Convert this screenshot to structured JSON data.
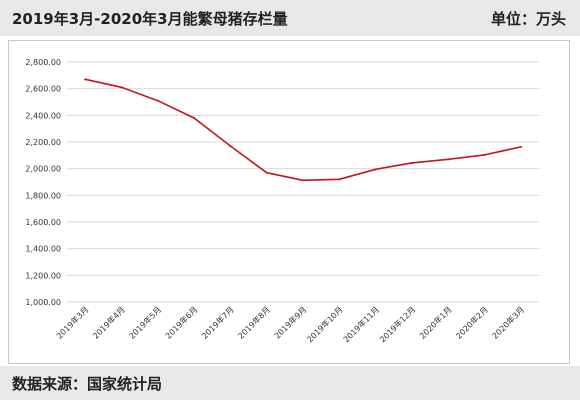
{
  "header": {
    "title": "2019年3月-2020年3月能繁母猪存栏量",
    "unit": "单位：万头"
  },
  "footer": {
    "source": "数据来源：国家统计局"
  },
  "colors": {
    "line": "#c0161c",
    "grid": "#d9d9d9",
    "band": "#e8e8e8"
  },
  "chart_data": {
    "type": "line",
    "title": "2019年3月-2020年3月能繁母猪存栏量",
    "xlabel": "",
    "ylabel": "",
    "unit": "单位：万头",
    "categories": [
      "2019年3月",
      "2019年4月",
      "2019年5月",
      "2019年6月",
      "2019年7月",
      "2019年8月",
      "2019年9月",
      "2019年10月",
      "2019年11月",
      "2019年12月",
      "2020年1月",
      "2020年2月",
      "2020年3月"
    ],
    "series": [
      {
        "values": [
          2670,
          2610,
          2510,
          2380,
          2170,
          1970,
          1913,
          1920,
          1995,
          2043,
          2070,
          2103,
          2163
        ]
      }
    ],
    "ylim": [
      1000,
      2800
    ],
    "yticks": [
      1000,
      1200,
      1400,
      1600,
      1800,
      2000,
      2200,
      2400,
      2600,
      2800
    ],
    "ytick_labels": [
      "1,000.00",
      "1,200.00",
      "1,400.00",
      "1,600.00",
      "1,800.00",
      "2,000.00",
      "2,200.00",
      "2,400.00",
      "2,600.00",
      "2,800.00"
    ],
    "grid": true,
    "legend": "none"
  }
}
